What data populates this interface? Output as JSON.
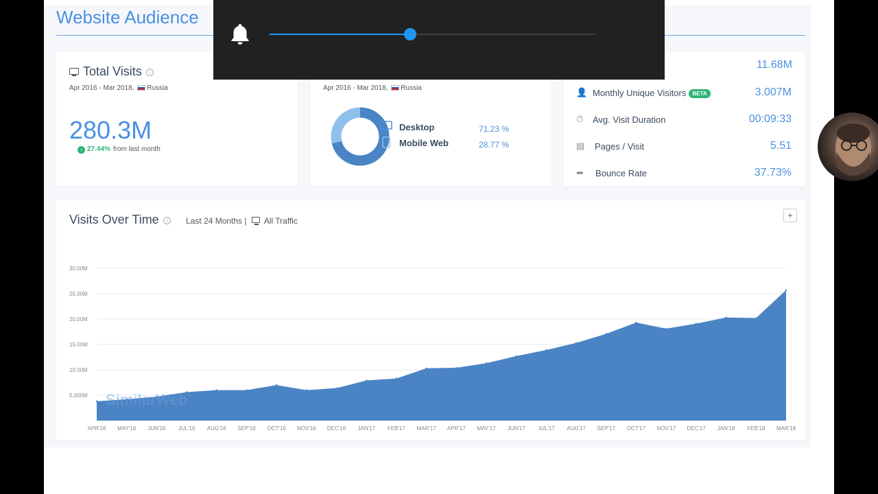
{
  "page_title": "Website Audience",
  "total_visits": {
    "title": "Total Visits",
    "date_range": "Apr 2016 - Mar 2018,",
    "country": "Russia",
    "value": "280.3M",
    "change_pct": "27.44%",
    "change_text": "from last month"
  },
  "devices": {
    "date_range": "Apr 2016 - Mar 2018,",
    "country": "Russia",
    "items": [
      {
        "label": "Desktop",
        "pct": "71.23 %",
        "share": 71.23
      },
      {
        "label": "Mobile Web",
        "pct": "28.77 %",
        "share": 28.77
      }
    ],
    "colors": {
      "desktop": "#4a84c4",
      "mobile": "#8fc0ec"
    }
  },
  "engagement": {
    "top_value": "11.68M",
    "rows": [
      {
        "label": "Monthly Unique Visitors",
        "badge": "BETA",
        "value": "3.007M",
        "icon": "user-icon"
      },
      {
        "label": "Avg. Visit Duration",
        "value": "00:09:33",
        "icon": "stopwatch-icon"
      },
      {
        "label": "Pages / Visit",
        "value": "5.51",
        "icon": "pages-icon"
      },
      {
        "label": "Bounce Rate",
        "value": "37.73%",
        "icon": "bounce-icon"
      }
    ]
  },
  "visits_over_time": {
    "title": "Visits Over Time",
    "period": "Last 24 Months |",
    "traffic": "All Traffic",
    "expand_label": "+",
    "watermark": "SimilarWeb"
  },
  "chart_data": {
    "type": "area",
    "x": [
      "APR'16",
      "MAY'16",
      "JUN'16",
      "JUL'16",
      "AUG'16",
      "SEP'16",
      "OCT'16",
      "NOV'16",
      "DEC'16",
      "JAN'17",
      "FEB'17",
      "MAR'17",
      "APR'17",
      "MAY'17",
      "JUN'17",
      "JUL'17",
      "AUG'17",
      "SEP'17",
      "OCT'17",
      "NOV'17",
      "DEC'17",
      "JAN'18",
      "FEB'18",
      "MAR'18"
    ],
    "series": [
      {
        "values": [
          3.8,
          4.2,
          4.7,
          5.6,
          6.0,
          6.0,
          7.0,
          6.0,
          6.4,
          7.9,
          8.3,
          10.3,
          10.4,
          11.3,
          12.7,
          13.9,
          15.3,
          17.1,
          19.3,
          18.1,
          19.1,
          20.3,
          20.2,
          25.7
        ]
      }
    ],
    "y_ticks": [
      "5.000M",
      "10.00M",
      "15.00M",
      "20.00M",
      "25.00M",
      "30.00M"
    ],
    "ylim": [
      0,
      30
    ],
    "unit": "M",
    "grid": true,
    "color": "#4a84c4"
  },
  "volume_overlay": {
    "level": 0.43,
    "accent": "#2196f3"
  }
}
